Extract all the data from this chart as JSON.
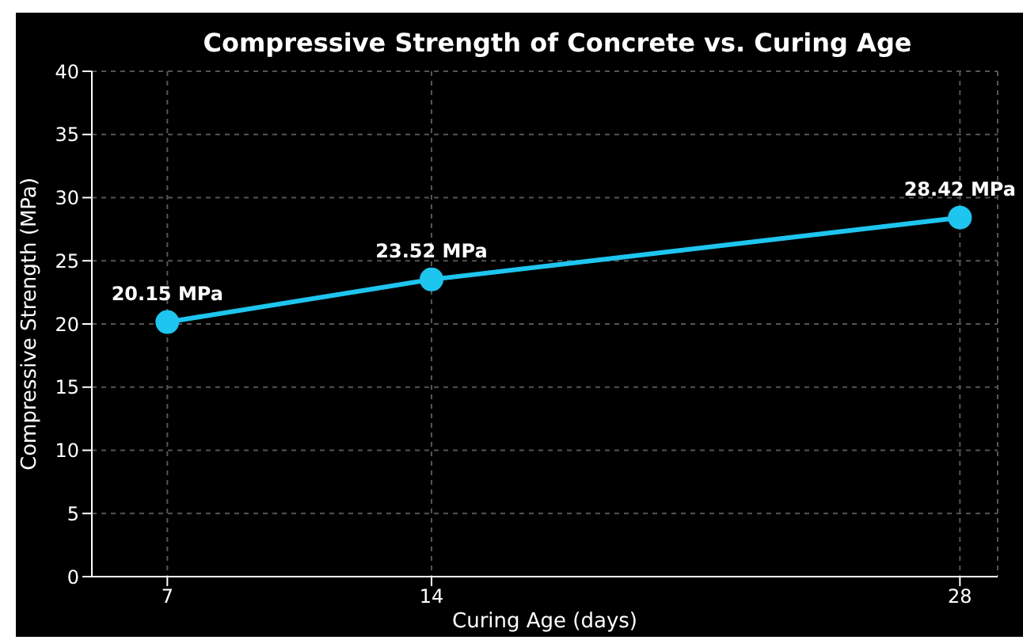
{
  "chart_data": {
    "type": "line",
    "title": "Compressive Strength of Concrete vs. Curing Age",
    "xlabel": "Curing Age (days)",
    "ylabel": "Compressive Strength (MPa)",
    "x": [
      7,
      14,
      28
    ],
    "series": [
      {
        "color": "#1ec5ef",
        "values": [
          20.15,
          23.52,
          28.42
        ],
        "value_labels": [
          "20.15 MPa",
          "23.52 MPa",
          "28.42 MPa"
        ]
      }
    ],
    "xlim": [
      5,
      29
    ],
    "xticks": [
      7,
      14,
      28
    ],
    "ylim": [
      0,
      40
    ],
    "yticks": [
      0,
      5,
      10,
      15,
      20,
      25,
      30,
      35,
      40
    ],
    "grid": true,
    "marker": "circle",
    "line_style": "solid",
    "legend": false
  }
}
